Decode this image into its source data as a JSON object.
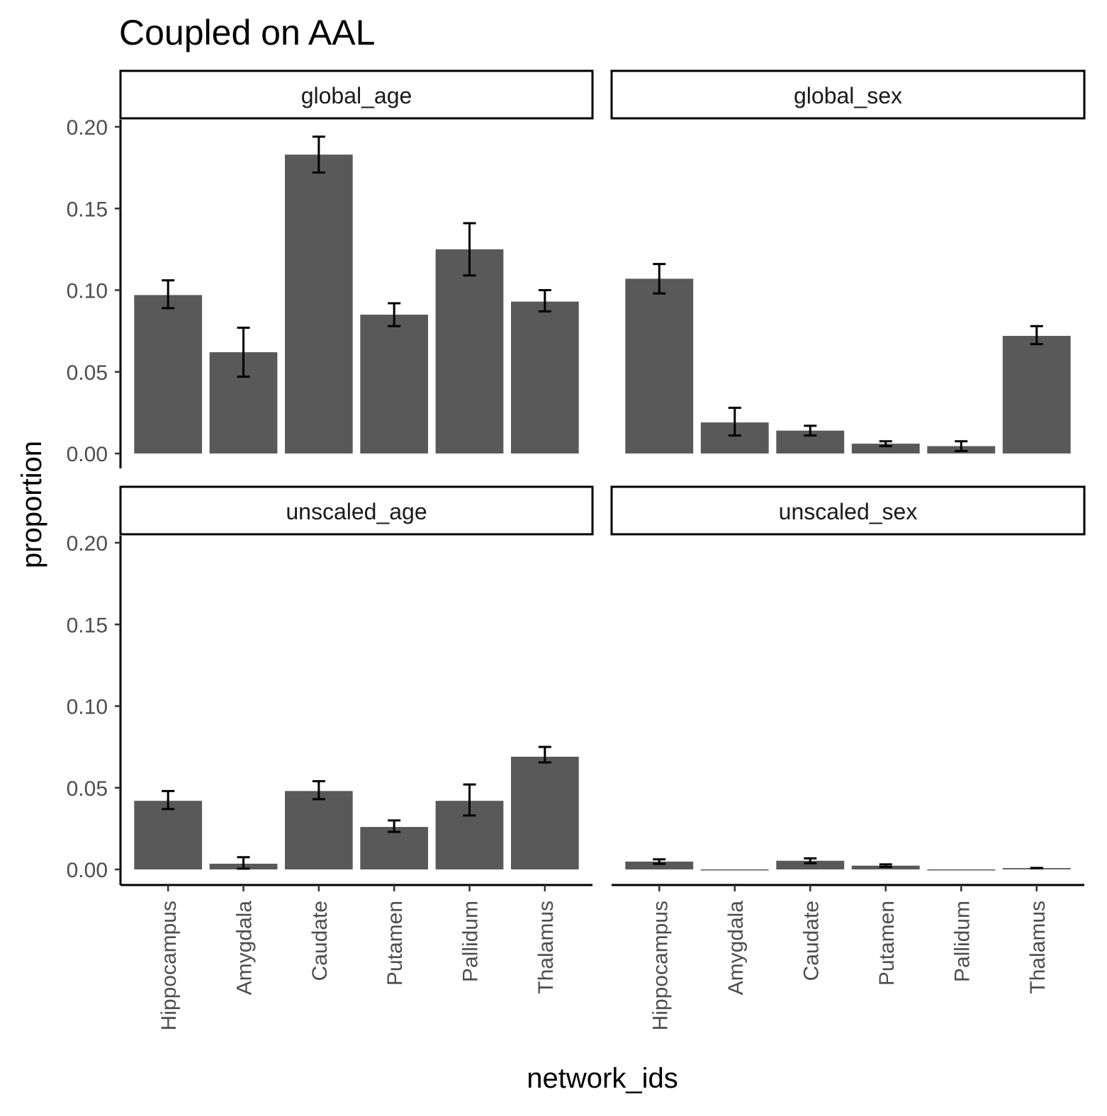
{
  "chart_data": {
    "type": "bar",
    "title": "Coupled on AAL",
    "xlabel": "network_ids",
    "ylabel": "proportion",
    "ylim": [
      0,
      0.2
    ],
    "yticks": [
      "0.00",
      "0.05",
      "0.10",
      "0.15",
      "0.20"
    ],
    "categories": [
      "Hippocampus",
      "Amygdala",
      "Caudate",
      "Putamen",
      "Pallidum",
      "Thalamus"
    ],
    "bar_color": "#595959",
    "error_bar_color": "#000000",
    "grid": false,
    "facets": [
      {
        "name": "global_age",
        "values": [
          0.097,
          0.062,
          0.183,
          0.085,
          0.125,
          0.093
        ],
        "err_low": [
          0.089,
          0.047,
          0.172,
          0.078,
          0.109,
          0.087
        ],
        "err_high": [
          0.106,
          0.077,
          0.194,
          0.092,
          0.141,
          0.1
        ]
      },
      {
        "name": "global_sex",
        "values": [
          0.107,
          0.019,
          0.014,
          0.006,
          0.0045,
          0.072
        ],
        "err_low": [
          0.098,
          0.011,
          0.011,
          0.0045,
          0.0015,
          0.067
        ],
        "err_high": [
          0.116,
          0.028,
          0.017,
          0.0075,
          0.0075,
          0.078
        ]
      },
      {
        "name": "unscaled_age",
        "values": [
          0.042,
          0.0035,
          0.048,
          0.026,
          0.042,
          0.069
        ],
        "err_low": [
          0.037,
          0.0005,
          0.043,
          0.023,
          0.033,
          0.0655
        ],
        "err_high": [
          0.048,
          0.0075,
          0.054,
          0.03,
          0.052,
          0.075
        ]
      },
      {
        "name": "unscaled_sex",
        "values": [
          0.0048,
          0,
          0.0053,
          0.0023,
          0,
          0.0008
        ],
        "err_low": [
          0.0034,
          null,
          0.0038,
          0.0015,
          null,
          0.0007
        ],
        "err_high": [
          0.0062,
          null,
          0.0068,
          0.0031,
          null,
          0.0009
        ]
      }
    ]
  }
}
